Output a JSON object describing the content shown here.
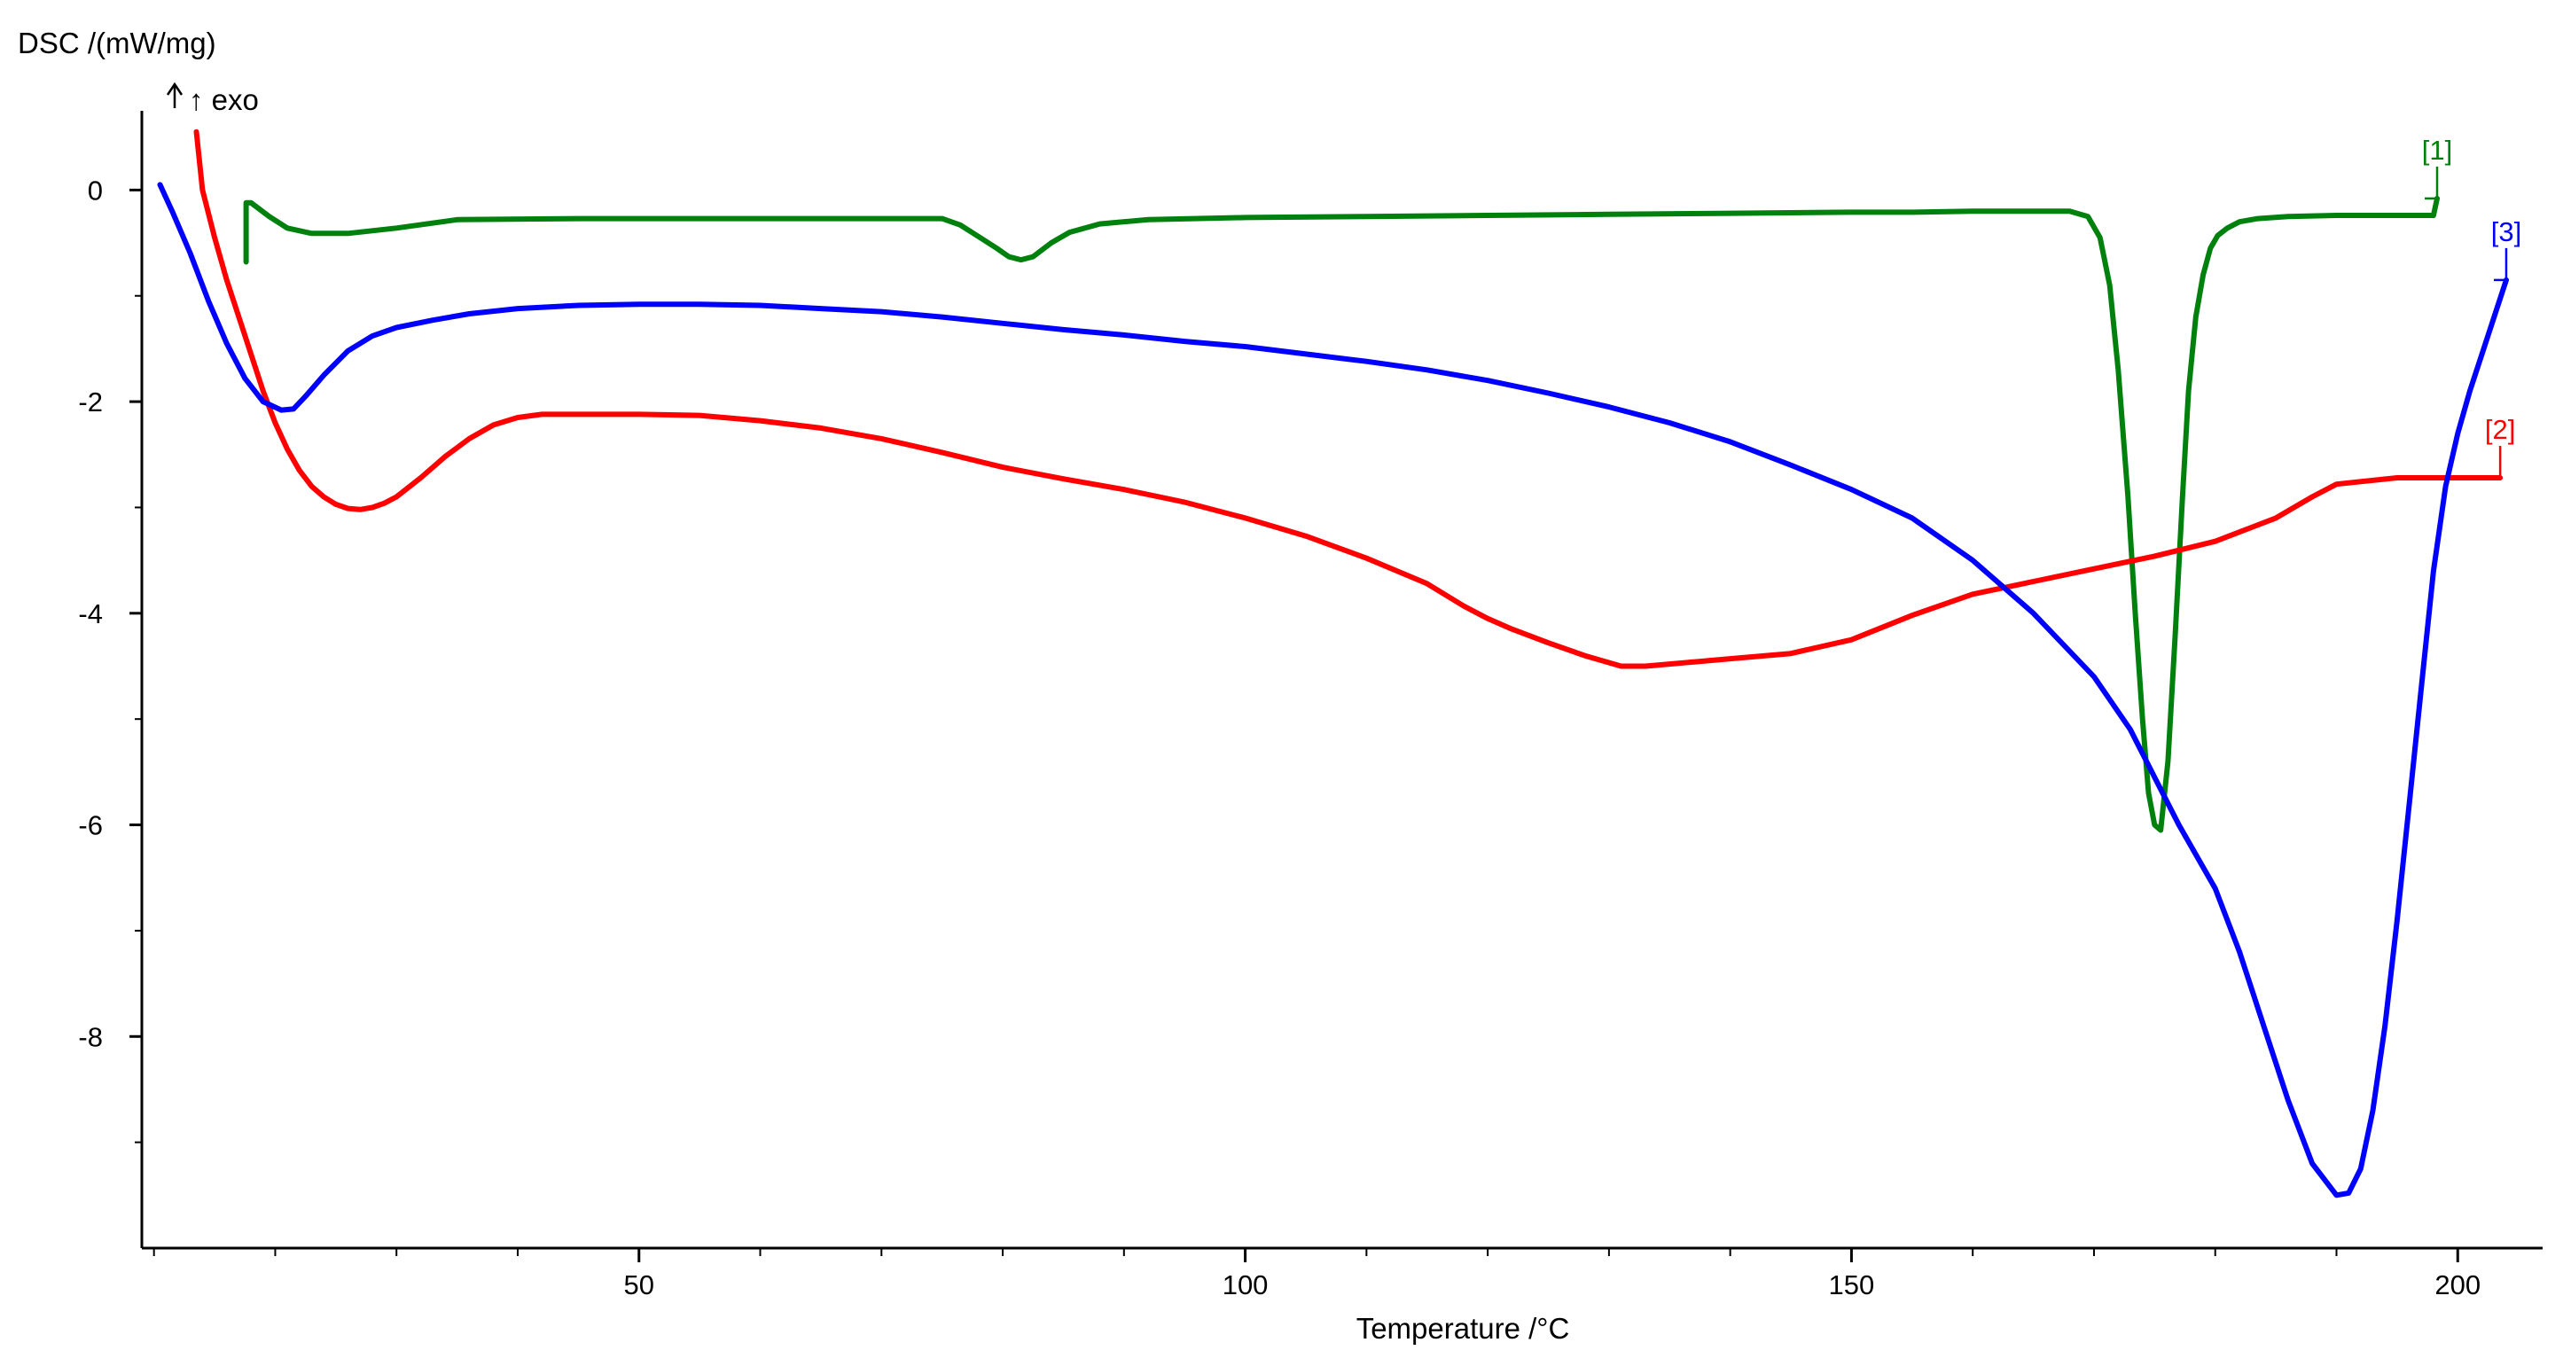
{
  "chart_data": {
    "type": "line",
    "ylabel": "DSC /(mW/mg)",
    "yannotation": "↑ exo",
    "xlabel": "Temperature /°C",
    "xlim": [
      9,
      207
    ],
    "ylim": [
      -10.0,
      1.0
    ],
    "xticks": [
      50,
      100,
      150,
      200
    ],
    "xminor": [
      10,
      20,
      30,
      40,
      60,
      70,
      80,
      90,
      110,
      120,
      130,
      140,
      160,
      170,
      180,
      190
    ],
    "yticks": [
      0,
      -2,
      -4,
      -6,
      -8
    ],
    "yminor": [
      -1,
      -3,
      -5,
      -7,
      -9
    ],
    "grid": false,
    "series": [
      {
        "name": "[1]",
        "color": "#00800d",
        "x": [
          17.6,
          17.6,
          18.0,
          19.5,
          21,
          23,
          26,
          30,
          35,
          45,
          55,
          65,
          70,
          75,
          76.5,
          78,
          79.5,
          80.5,
          81.5,
          82.5,
          84,
          85.5,
          88,
          92,
          100,
          110,
          120,
          130,
          140,
          150,
          155,
          160,
          165,
          168,
          169.5,
          170.5,
          171.3,
          172,
          172.8,
          173.4,
          174,
          174.5,
          175,
          175.5,
          176.1,
          176.7,
          177.3,
          177.8,
          178.4,
          179,
          179.6,
          180.2,
          181,
          182,
          183.5,
          186,
          190,
          195,
          198,
          198.3
        ],
        "values": [
          -0.68,
          -0.12,
          -0.12,
          -0.25,
          -0.36,
          -0.41,
          -0.41,
          -0.36,
          -0.28,
          -0.27,
          -0.27,
          -0.27,
          -0.27,
          -0.27,
          -0.33,
          -0.44,
          -0.55,
          -0.63,
          -0.66,
          -0.63,
          -0.5,
          -0.4,
          -0.32,
          -0.28,
          -0.26,
          -0.25,
          -0.24,
          -0.23,
          -0.22,
          -0.21,
          -0.21,
          -0.2,
          -0.2,
          -0.2,
          -0.25,
          -0.45,
          -0.9,
          -1.7,
          -2.9,
          -4.0,
          -5.0,
          -5.7,
          -6.0,
          -6.05,
          -5.4,
          -4.2,
          -2.9,
          -1.9,
          -1.2,
          -0.8,
          -0.55,
          -0.43,
          -0.36,
          -0.3,
          -0.27,
          -0.25,
          -0.24,
          -0.24,
          -0.24,
          -0.08
        ]
      },
      {
        "name": "[2]",
        "color": "#ff0000",
        "x": [
          13.5,
          14,
          15,
          16,
          17,
          18,
          19,
          20,
          21,
          22,
          23,
          24,
          25,
          26,
          27,
          28,
          29,
          30,
          32,
          34,
          36,
          38,
          40,
          42,
          45,
          50,
          55,
          60,
          65,
          70,
          75,
          80,
          85,
          90,
          95,
          100,
          105,
          110,
          115,
          118,
          120,
          122,
          125,
          128,
          131,
          133,
          135,
          137,
          140,
          145,
          150,
          155,
          160,
          165,
          170,
          175,
          180,
          185,
          188,
          190,
          195,
          200,
          203.5
        ],
        "values": [
          0.55,
          0.0,
          -0.45,
          -0.85,
          -1.2,
          -1.55,
          -1.9,
          -2.2,
          -2.45,
          -2.65,
          -2.8,
          -2.9,
          -2.97,
          -3.01,
          -3.02,
          -3.0,
          -2.96,
          -2.9,
          -2.72,
          -2.52,
          -2.35,
          -2.22,
          -2.15,
          -2.12,
          -2.12,
          -2.12,
          -2.13,
          -2.18,
          -2.25,
          -2.35,
          -2.48,
          -2.62,
          -2.73,
          -2.83,
          -2.95,
          -3.1,
          -3.27,
          -3.48,
          -3.72,
          -3.93,
          -4.05,
          -4.15,
          -4.28,
          -4.4,
          -4.5,
          -4.5,
          -4.48,
          -4.46,
          -4.43,
          -4.38,
          -4.25,
          -4.02,
          -3.82,
          -3.7,
          -3.58,
          -3.46,
          -3.32,
          -3.1,
          -2.9,
          -2.78,
          -2.72,
          -2.72,
          -2.72
        ]
      },
      {
        "name": "[3]",
        "color": "#0000ff",
        "x": [
          10.5,
          11.5,
          13,
          14.5,
          16,
          17.5,
          19,
          20.5,
          21.5,
          22.5,
          24,
          26,
          28,
          30,
          33,
          36,
          40,
          45,
          50,
          55,
          60,
          65,
          70,
          75,
          80,
          85,
          90,
          95,
          100,
          105,
          110,
          115,
          120,
          125,
          130,
          135,
          140,
          145,
          150,
          155,
          160,
          165,
          170,
          173,
          175,
          177,
          180,
          182,
          184,
          186,
          188,
          190,
          191,
          192,
          193,
          194,
          195,
          196,
          197,
          198,
          199,
          200,
          201,
          202,
          203,
          204
        ],
        "values": [
          0.05,
          -0.2,
          -0.6,
          -1.05,
          -1.45,
          -1.78,
          -2.0,
          -2.08,
          -2.07,
          -1.95,
          -1.75,
          -1.52,
          -1.38,
          -1.3,
          -1.23,
          -1.17,
          -1.12,
          -1.09,
          -1.08,
          -1.08,
          -1.09,
          -1.12,
          -1.15,
          -1.2,
          -1.26,
          -1.32,
          -1.37,
          -1.43,
          -1.48,
          -1.55,
          -1.62,
          -1.7,
          -1.8,
          -1.92,
          -2.05,
          -2.2,
          -2.38,
          -2.6,
          -2.83,
          -3.1,
          -3.5,
          -4.0,
          -4.6,
          -5.1,
          -5.55,
          -6.0,
          -6.6,
          -7.2,
          -7.9,
          -8.6,
          -9.2,
          -9.5,
          -9.48,
          -9.25,
          -8.7,
          -7.9,
          -6.9,
          -5.8,
          -4.7,
          -3.6,
          -2.8,
          -2.3,
          -1.9,
          -1.55,
          -1.2,
          -0.85
        ]
      }
    ]
  }
}
